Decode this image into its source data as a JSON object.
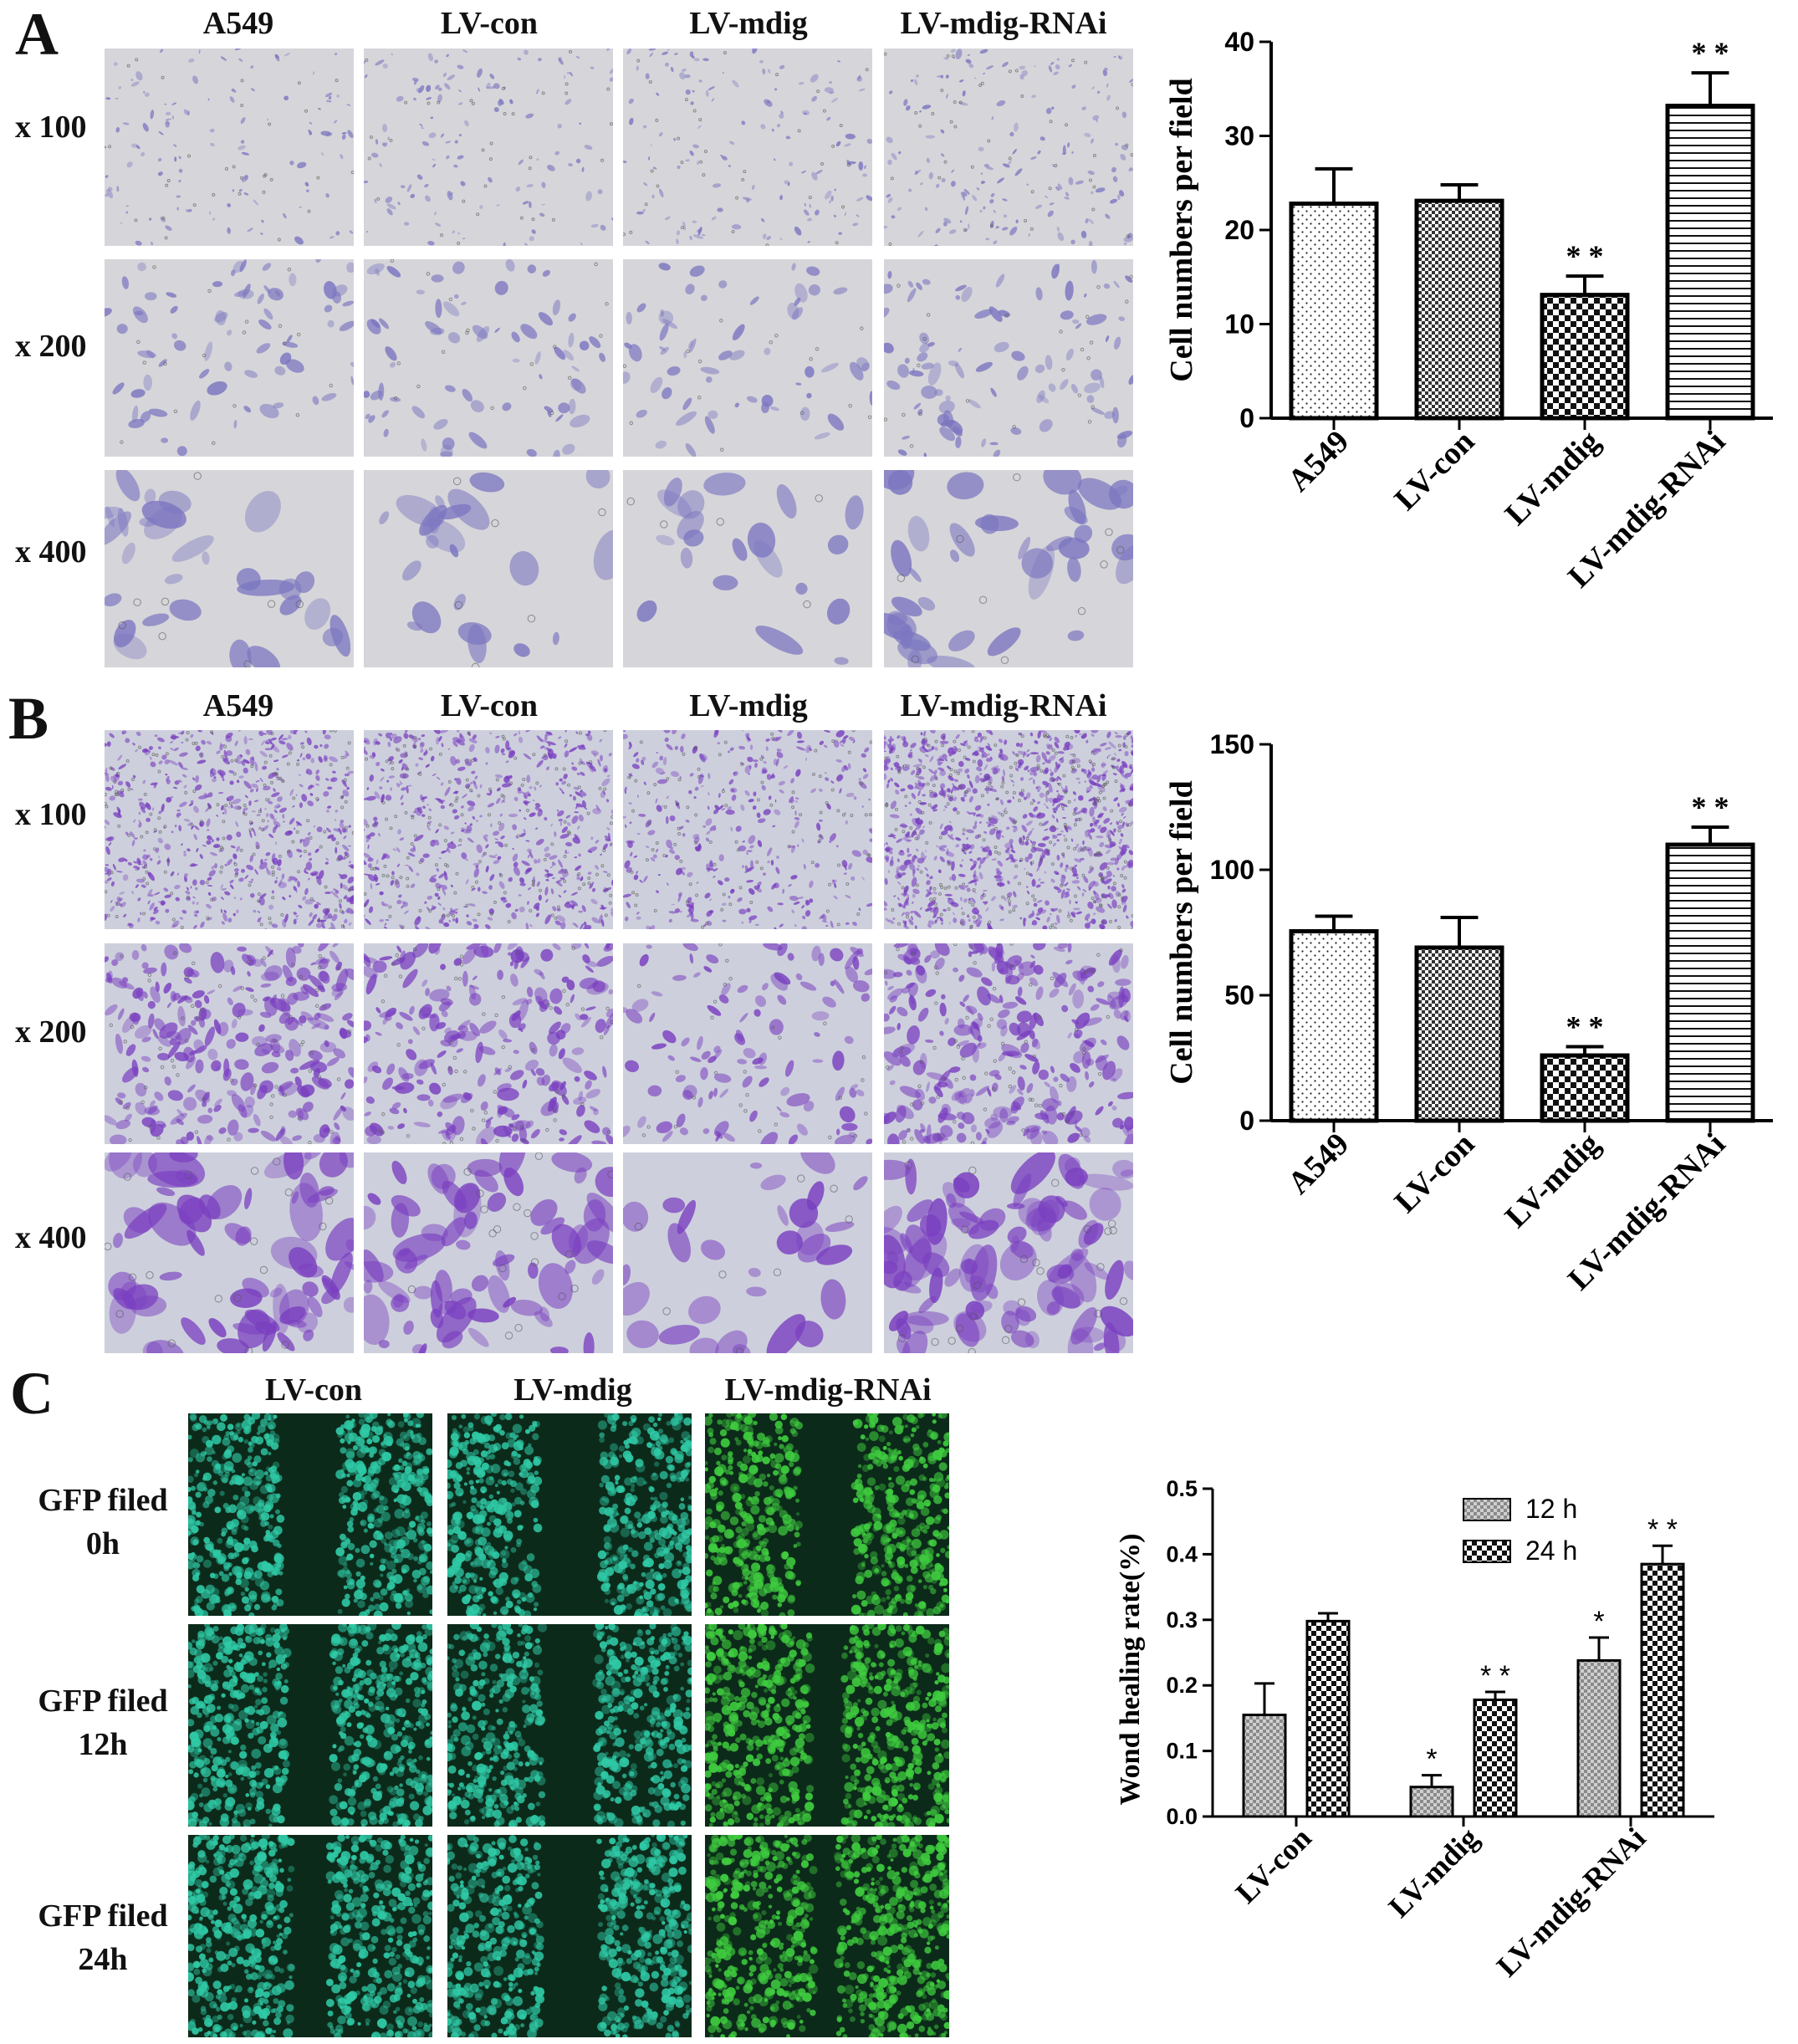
{
  "panel_a": {
    "letter": "A",
    "col_headers": [
      "A549",
      "LV-con",
      "LV-mdig",
      "LV-mdig-RNAi"
    ],
    "row_headers": [
      "x 100",
      "x 200",
      "x 400"
    ]
  },
  "panel_b": {
    "letter": "B",
    "col_headers": [
      "A549",
      "LV-con",
      "LV-mdig",
      "LV-mdig-RNAi"
    ],
    "row_headers": [
      "x 100",
      "x 200",
      "x 400"
    ]
  },
  "panel_c": {
    "letter": "C",
    "col_headers": [
      "LV-con",
      "LV-mdig",
      "LV-mdig-RNAi"
    ],
    "row_headers": [
      [
        "GFP  filed",
        "0h"
      ],
      [
        "GFP  filed",
        "12h"
      ],
      [
        "GFP  filed",
        "24h"
      ]
    ]
  },
  "chart_data": [
    {
      "type": "bar",
      "categories": [
        "A549",
        "LV-con",
        "LV-mdig",
        "LV-mdig-RNAi"
      ],
      "values": [
        22.8,
        23.1,
        13.1,
        33.2
      ],
      "errors": [
        3.7,
        1.7,
        2.0,
        3.5
      ],
      "significance": [
        "",
        "",
        "* *",
        "* *"
      ],
      "patterns": [
        "dots",
        "checker",
        "checker-bold",
        "hlines"
      ],
      "ylabel": "Cell numbers per field",
      "ylim": [
        0,
        40
      ],
      "yticks": [
        0,
        10,
        20,
        30,
        40
      ]
    },
    {
      "type": "bar",
      "categories": [
        "A549",
        "LV-con",
        "LV-mdig",
        "LV-mdig-RNAi"
      ],
      "values": [
        75.5,
        69.0,
        26.0,
        110.0
      ],
      "errors": [
        6.0,
        12.0,
        3.5,
        7.0
      ],
      "significance": [
        "",
        "",
        "* *",
        "* *"
      ],
      "patterns": [
        "dots",
        "checker",
        "checker-bold",
        "hlines"
      ],
      "ylabel": "Cell numbers per field",
      "ylim": [
        0,
        150
      ],
      "yticks": [
        0,
        50,
        100,
        150
      ]
    },
    {
      "type": "bar",
      "categories": [
        "LV-con",
        "LV-mdig",
        "LV-mdig-RNAi"
      ],
      "series": [
        {
          "name": "12 h",
          "values": [
            0.155,
            0.045,
            0.238
          ],
          "errors": [
            0.048,
            0.018,
            0.035
          ],
          "significance": [
            "",
            "*",
            "*"
          ]
        },
        {
          "name": "24 h",
          "values": [
            0.298,
            0.178,
            0.385
          ],
          "errors": [
            0.012,
            0.012,
            0.028
          ],
          "significance": [
            "",
            "* *",
            "* *"
          ]
        }
      ],
      "ylabel": "Wond healing rate(%)",
      "ylim": [
        0,
        0.5
      ],
      "yticks": [
        "0.0",
        "0.1",
        "0.2",
        "0.3",
        "0.4",
        "0.5"
      ],
      "legend_position": "top-right"
    }
  ],
  "colors": {
    "stain_light": "#c9c9d2",
    "stain_purple": "#7a3fc0",
    "fluor_teal": "#2fc9a6",
    "fluor_green": "#3fcc3f",
    "fluor_bg": "#0c2a1a"
  }
}
